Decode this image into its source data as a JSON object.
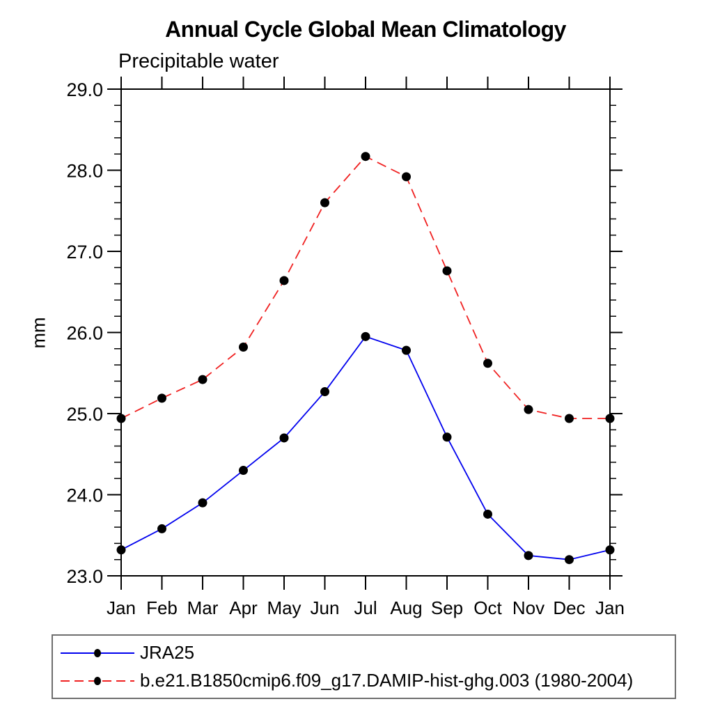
{
  "chart": {
    "title": "Annual Cycle Global Mean Climatology",
    "subtitle": "Precipitable water",
    "ylabel": "mm",
    "legend": [
      {
        "label": "JRA25",
        "color": "#0000ee",
        "style": "solid",
        "marker_color": "#000000"
      },
      {
        "label": "b.e21.B1850cmip6.f09_g17.DAMIP-hist-ghg.003 (1980-2004)",
        "color": "#f02020",
        "style": "dashed",
        "marker_color": "#000000"
      }
    ]
  },
  "chart_data": {
    "type": "line",
    "title": "Annual Cycle Global Mean Climatology",
    "subtitle": "Precipitable water",
    "xlabel": "",
    "ylabel": "mm",
    "categories": [
      "Jan",
      "Feb",
      "Mar",
      "Apr",
      "May",
      "Jun",
      "Jul",
      "Aug",
      "Sep",
      "Oct",
      "Nov",
      "Dec",
      "Jan"
    ],
    "series": [
      {
        "name": "JRA25",
        "color": "#0000ee",
        "line_style": "solid",
        "marker": "filled-circle",
        "marker_color": "#000000",
        "values": [
          23.32,
          23.58,
          23.9,
          24.3,
          24.7,
          25.27,
          25.95,
          25.78,
          24.71,
          23.76,
          23.25,
          23.2,
          23.32
        ]
      },
      {
        "name": "b.e21.B1850cmip6.f09_g17.DAMIP-hist-ghg.003 (1980-2004)",
        "color": "#f02020",
        "line_style": "dashed",
        "marker": "filled-circle",
        "marker_color": "#000000",
        "values": [
          24.94,
          25.19,
          25.42,
          25.82,
          26.64,
          27.6,
          28.17,
          27.92,
          26.76,
          25.62,
          25.05,
          24.94,
          24.94
        ]
      }
    ],
    "ylim": [
      23.0,
      29.0
    ],
    "ytick_step": 1.0,
    "ytick_minor_step": 0.2,
    "ytick_labels": [
      "23.0",
      "24.0",
      "25.0",
      "26.0",
      "27.0",
      "28.0",
      "29.0"
    ],
    "grid": false,
    "legend_position": "bottom",
    "axis_frame": "box-with-outward-ticks"
  }
}
